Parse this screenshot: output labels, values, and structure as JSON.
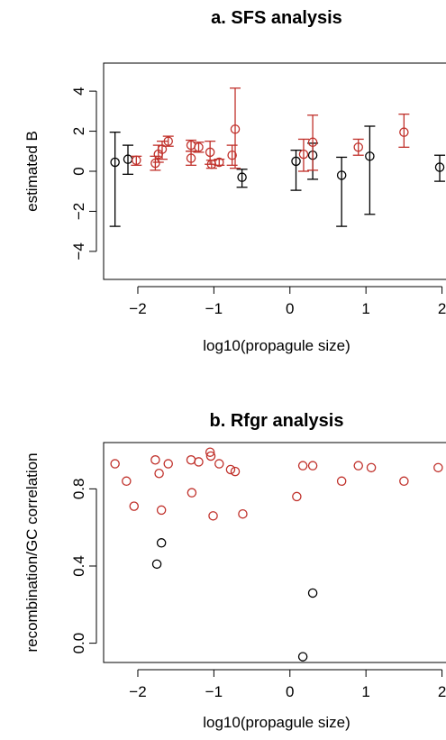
{
  "colors": {
    "red": "#c0302a",
    "black": "#000000"
  },
  "chart_data": [
    {
      "type": "scatter",
      "title": "a. SFS analysis",
      "xlabel": "log10(propagule size)",
      "ylabel": "estimated B",
      "xlim": [
        -2.45,
        2.1
      ],
      "ylim": [
        -5.4,
        5.4
      ],
      "xticks": [
        -2,
        -1,
        0,
        1,
        2
      ],
      "yticks": [
        -4,
        -2,
        0,
        2,
        4
      ],
      "xtick_labels": [
        "−2",
        "−1",
        "0",
        "1",
        "2"
      ],
      "ytick_labels": [
        "−4",
        "−2",
        "0",
        "2",
        "4"
      ],
      "error_bars": true,
      "grid": false,
      "series": [
        {
          "color": "black",
          "points": [
            {
              "x": -2.3,
              "y": 0.45,
              "lo": -2.75,
              "hi": 1.95
            },
            {
              "x": -2.13,
              "y": 0.6,
              "lo": -0.15,
              "hi": 1.3
            },
            {
              "x": -0.63,
              "y": -0.3,
              "lo": -0.8,
              "hi": 0.1
            },
            {
              "x": 0.08,
              "y": 0.5,
              "lo": -0.95,
              "hi": 1.05
            },
            {
              "x": 0.3,
              "y": 0.8,
              "lo": -0.4,
              "hi": 1.4
            },
            {
              "x": 0.68,
              "y": -0.2,
              "lo": -2.75,
              "hi": 0.7
            },
            {
              "x": 1.05,
              "y": 0.75,
              "lo": -2.15,
              "hi": 2.25
            },
            {
              "x": 1.97,
              "y": 0.2,
              "lo": -0.5,
              "hi": 0.8
            }
          ]
        },
        {
          "color": "red",
          "points": [
            {
              "x": -2.02,
              "y": 0.55,
              "lo": 0.3,
              "hi": 0.75
            },
            {
              "x": -1.77,
              "y": 0.4,
              "lo": 0.05,
              "hi": 0.75
            },
            {
              "x": -1.73,
              "y": 0.85,
              "lo": 0.45,
              "hi": 1.3
            },
            {
              "x": -1.68,
              "y": 1.1,
              "lo": 0.6,
              "hi": 1.5
            },
            {
              "x": -1.6,
              "y": 1.5,
              "lo": 1.25,
              "hi": 1.75
            },
            {
              "x": -1.3,
              "y": 1.3,
              "lo": 1.0,
              "hi": 1.55
            },
            {
              "x": -1.3,
              "y": 0.65,
              "lo": 0.3,
              "hi": 1.0
            },
            {
              "x": -1.2,
              "y": 1.2,
              "lo": 0.95,
              "hi": 1.45
            },
            {
              "x": -1.05,
              "y": 0.95,
              "lo": 0.35,
              "hi": 1.5
            },
            {
              "x": -1.03,
              "y": 0.35,
              "lo": 0.15,
              "hi": 0.55
            },
            {
              "x": -0.93,
              "y": 0.45,
              "lo": 0.3,
              "hi": 0.6
            },
            {
              "x": -0.76,
              "y": 0.8,
              "lo": 0.3,
              "hi": 1.3
            },
            {
              "x": -0.72,
              "y": 2.1,
              "lo": 0.15,
              "hi": 4.15
            },
            {
              "x": 0.18,
              "y": 0.85,
              "lo": 0.0,
              "hi": 1.6
            },
            {
              "x": 0.3,
              "y": 1.45,
              "lo": 0.05,
              "hi": 2.8
            },
            {
              "x": 0.9,
              "y": 1.2,
              "lo": 0.8,
              "hi": 1.6
            },
            {
              "x": 1.5,
              "y": 1.95,
              "lo": 1.2,
              "hi": 2.85
            }
          ]
        }
      ]
    },
    {
      "type": "scatter",
      "title": "b. Rfgr analysis",
      "xlabel": "log10(propagule size)",
      "ylabel": "recombination/GC correlation",
      "xlim": [
        -2.45,
        2.1
      ],
      "ylim": [
        -0.1,
        1.04
      ],
      "xticks": [
        -2,
        -1,
        0,
        1,
        2
      ],
      "yticks": [
        0.0,
        0.4,
        0.8
      ],
      "xtick_labels": [
        "−2",
        "−1",
        "0",
        "1",
        "2"
      ],
      "ytick_labels": [
        "0.0",
        "0.4",
        "0.8"
      ],
      "error_bars": false,
      "grid": false,
      "series": [
        {
          "color": "black",
          "points": [
            {
              "x": -1.75,
              "y": 0.41
            },
            {
              "x": -1.69,
              "y": 0.52
            },
            {
              "x": 0.17,
              "y": -0.07
            },
            {
              "x": 0.3,
              "y": 0.26
            }
          ]
        },
        {
          "color": "red",
          "points": [
            {
              "x": -2.3,
              "y": 0.93
            },
            {
              "x": -2.15,
              "y": 0.84
            },
            {
              "x": -2.05,
              "y": 0.71
            },
            {
              "x": -1.77,
              "y": 0.95
            },
            {
              "x": -1.72,
              "y": 0.88
            },
            {
              "x": -1.69,
              "y": 0.69
            },
            {
              "x": -1.6,
              "y": 0.93
            },
            {
              "x": -1.3,
              "y": 0.95
            },
            {
              "x": -1.29,
              "y": 0.78
            },
            {
              "x": -1.2,
              "y": 0.94
            },
            {
              "x": -1.05,
              "y": 0.99
            },
            {
              "x": -1.04,
              "y": 0.97
            },
            {
              "x": -1.01,
              "y": 0.66
            },
            {
              "x": -0.93,
              "y": 0.93
            },
            {
              "x": -0.78,
              "y": 0.9
            },
            {
              "x": -0.72,
              "y": 0.89
            },
            {
              "x": -0.62,
              "y": 0.67
            },
            {
              "x": 0.09,
              "y": 0.76
            },
            {
              "x": 0.17,
              "y": 0.92
            },
            {
              "x": 0.3,
              "y": 0.92
            },
            {
              "x": 0.68,
              "y": 0.84
            },
            {
              "x": 0.9,
              "y": 0.92
            },
            {
              "x": 1.07,
              "y": 0.91
            },
            {
              "x": 1.5,
              "y": 0.84
            },
            {
              "x": 1.95,
              "y": 0.91
            }
          ]
        }
      ]
    }
  ]
}
